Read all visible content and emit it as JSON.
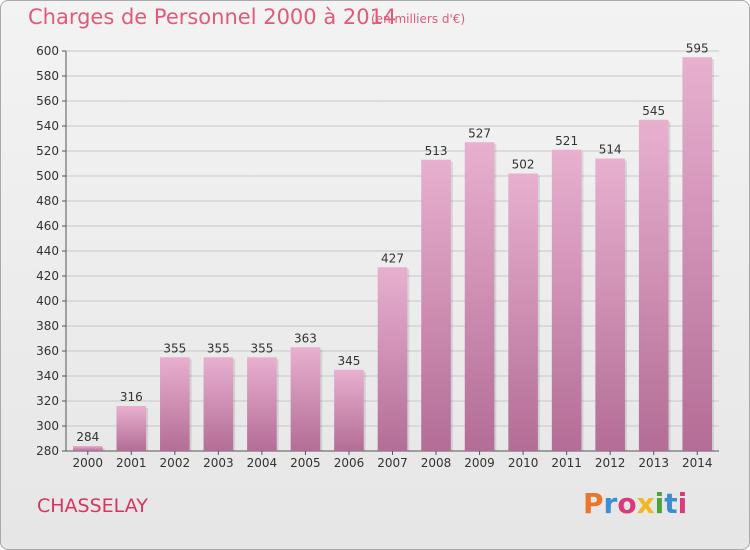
{
  "header": {
    "title": "Charges de Personnel 2000 à 2014",
    "subtitle": "(en milliers d'€)"
  },
  "place": "CHASSELAY",
  "logo": {
    "text": "Proxiti",
    "colors": [
      "#e8762b",
      "#3b8fd0",
      "#d93a7a",
      "#f2b823",
      "#4aa43a",
      "#3b8fd0",
      "#d93a7a"
    ]
  },
  "colors": {
    "bar_light": "#e8b0cf",
    "bar_dark": "#b36d96",
    "grid": "#c8c8c8"
  },
  "chart_data": {
    "type": "bar",
    "categories": [
      "2000",
      "2001",
      "2002",
      "2003",
      "2004",
      "2005",
      "2006",
      "2007",
      "2008",
      "2009",
      "2010",
      "2011",
      "2012",
      "2013",
      "2014"
    ],
    "values": [
      284,
      316,
      355,
      355,
      355,
      363,
      345,
      427,
      513,
      527,
      502,
      521,
      514,
      545,
      595
    ],
    "title": "Charges de Personnel 2000 à 2014",
    "subtitle": "(en milliers d'€)",
    "ylim": [
      280,
      600
    ],
    "yticks": [
      280,
      300,
      320,
      340,
      360,
      380,
      400,
      420,
      440,
      460,
      480,
      500,
      520,
      540,
      560,
      580,
      600
    ],
    "grid": true
  }
}
